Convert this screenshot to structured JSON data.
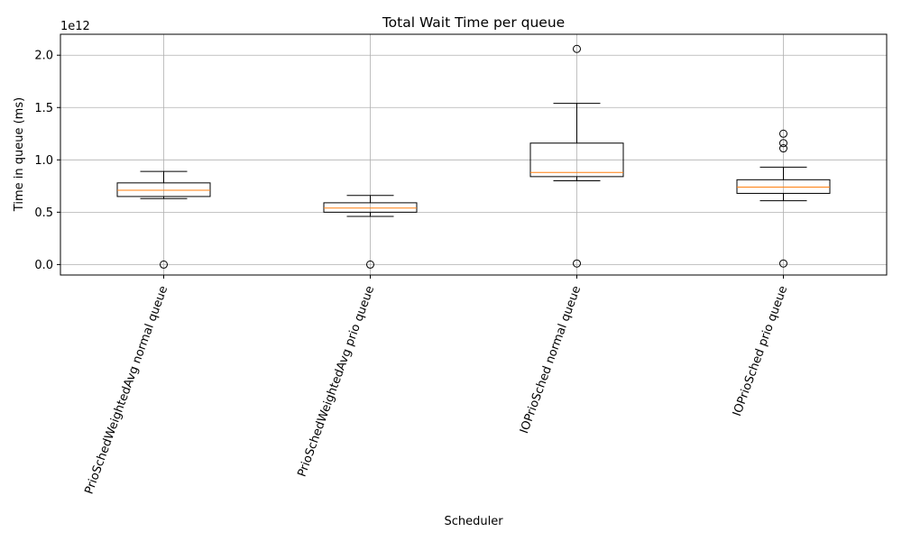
{
  "chart_data": {
    "type": "box",
    "title": "Total Wait Time per queue",
    "xlabel": "Scheduler",
    "ylabel": "Time in queue (ms)",
    "offset_text": "1e12",
    "scale": 1000000000000.0,
    "ylim": [
      -0.1,
      2.2
    ],
    "yticks": [
      0.0,
      0.5,
      1.0,
      1.5,
      2.0
    ],
    "ytick_labels": [
      "0.0",
      "0.5",
      "1.0",
      "1.5",
      "2.0"
    ],
    "grid": true,
    "categories": [
      "PrioSchedWeightedAvg normal queue",
      "PrioSchedWeightedAvg prio queue",
      "IOPrioSched normal queue",
      "IOPrioSched prio queue"
    ],
    "boxes": [
      {
        "whisker_low": 0.63,
        "q1": 0.65,
        "median": 0.71,
        "q3": 0.78,
        "whisker_high": 0.89,
        "outliers": [
          0.0
        ]
      },
      {
        "whisker_low": 0.46,
        "q1": 0.5,
        "median": 0.54,
        "q3": 0.59,
        "whisker_high": 0.66,
        "outliers": [
          0.0
        ]
      },
      {
        "whisker_low": 0.8,
        "q1": 0.84,
        "median": 0.88,
        "q3": 1.16,
        "whisker_high": 1.54,
        "outliers": [
          2.06,
          0.01
        ]
      },
      {
        "whisker_low": 0.61,
        "q1": 0.68,
        "median": 0.74,
        "q3": 0.81,
        "whisker_high": 0.93,
        "outliers": [
          1.25,
          1.16,
          1.11,
          0.01
        ]
      }
    ],
    "colors": {
      "box": "#000000",
      "median": "#ff7f0e",
      "grid": "#b0b0b0"
    }
  }
}
